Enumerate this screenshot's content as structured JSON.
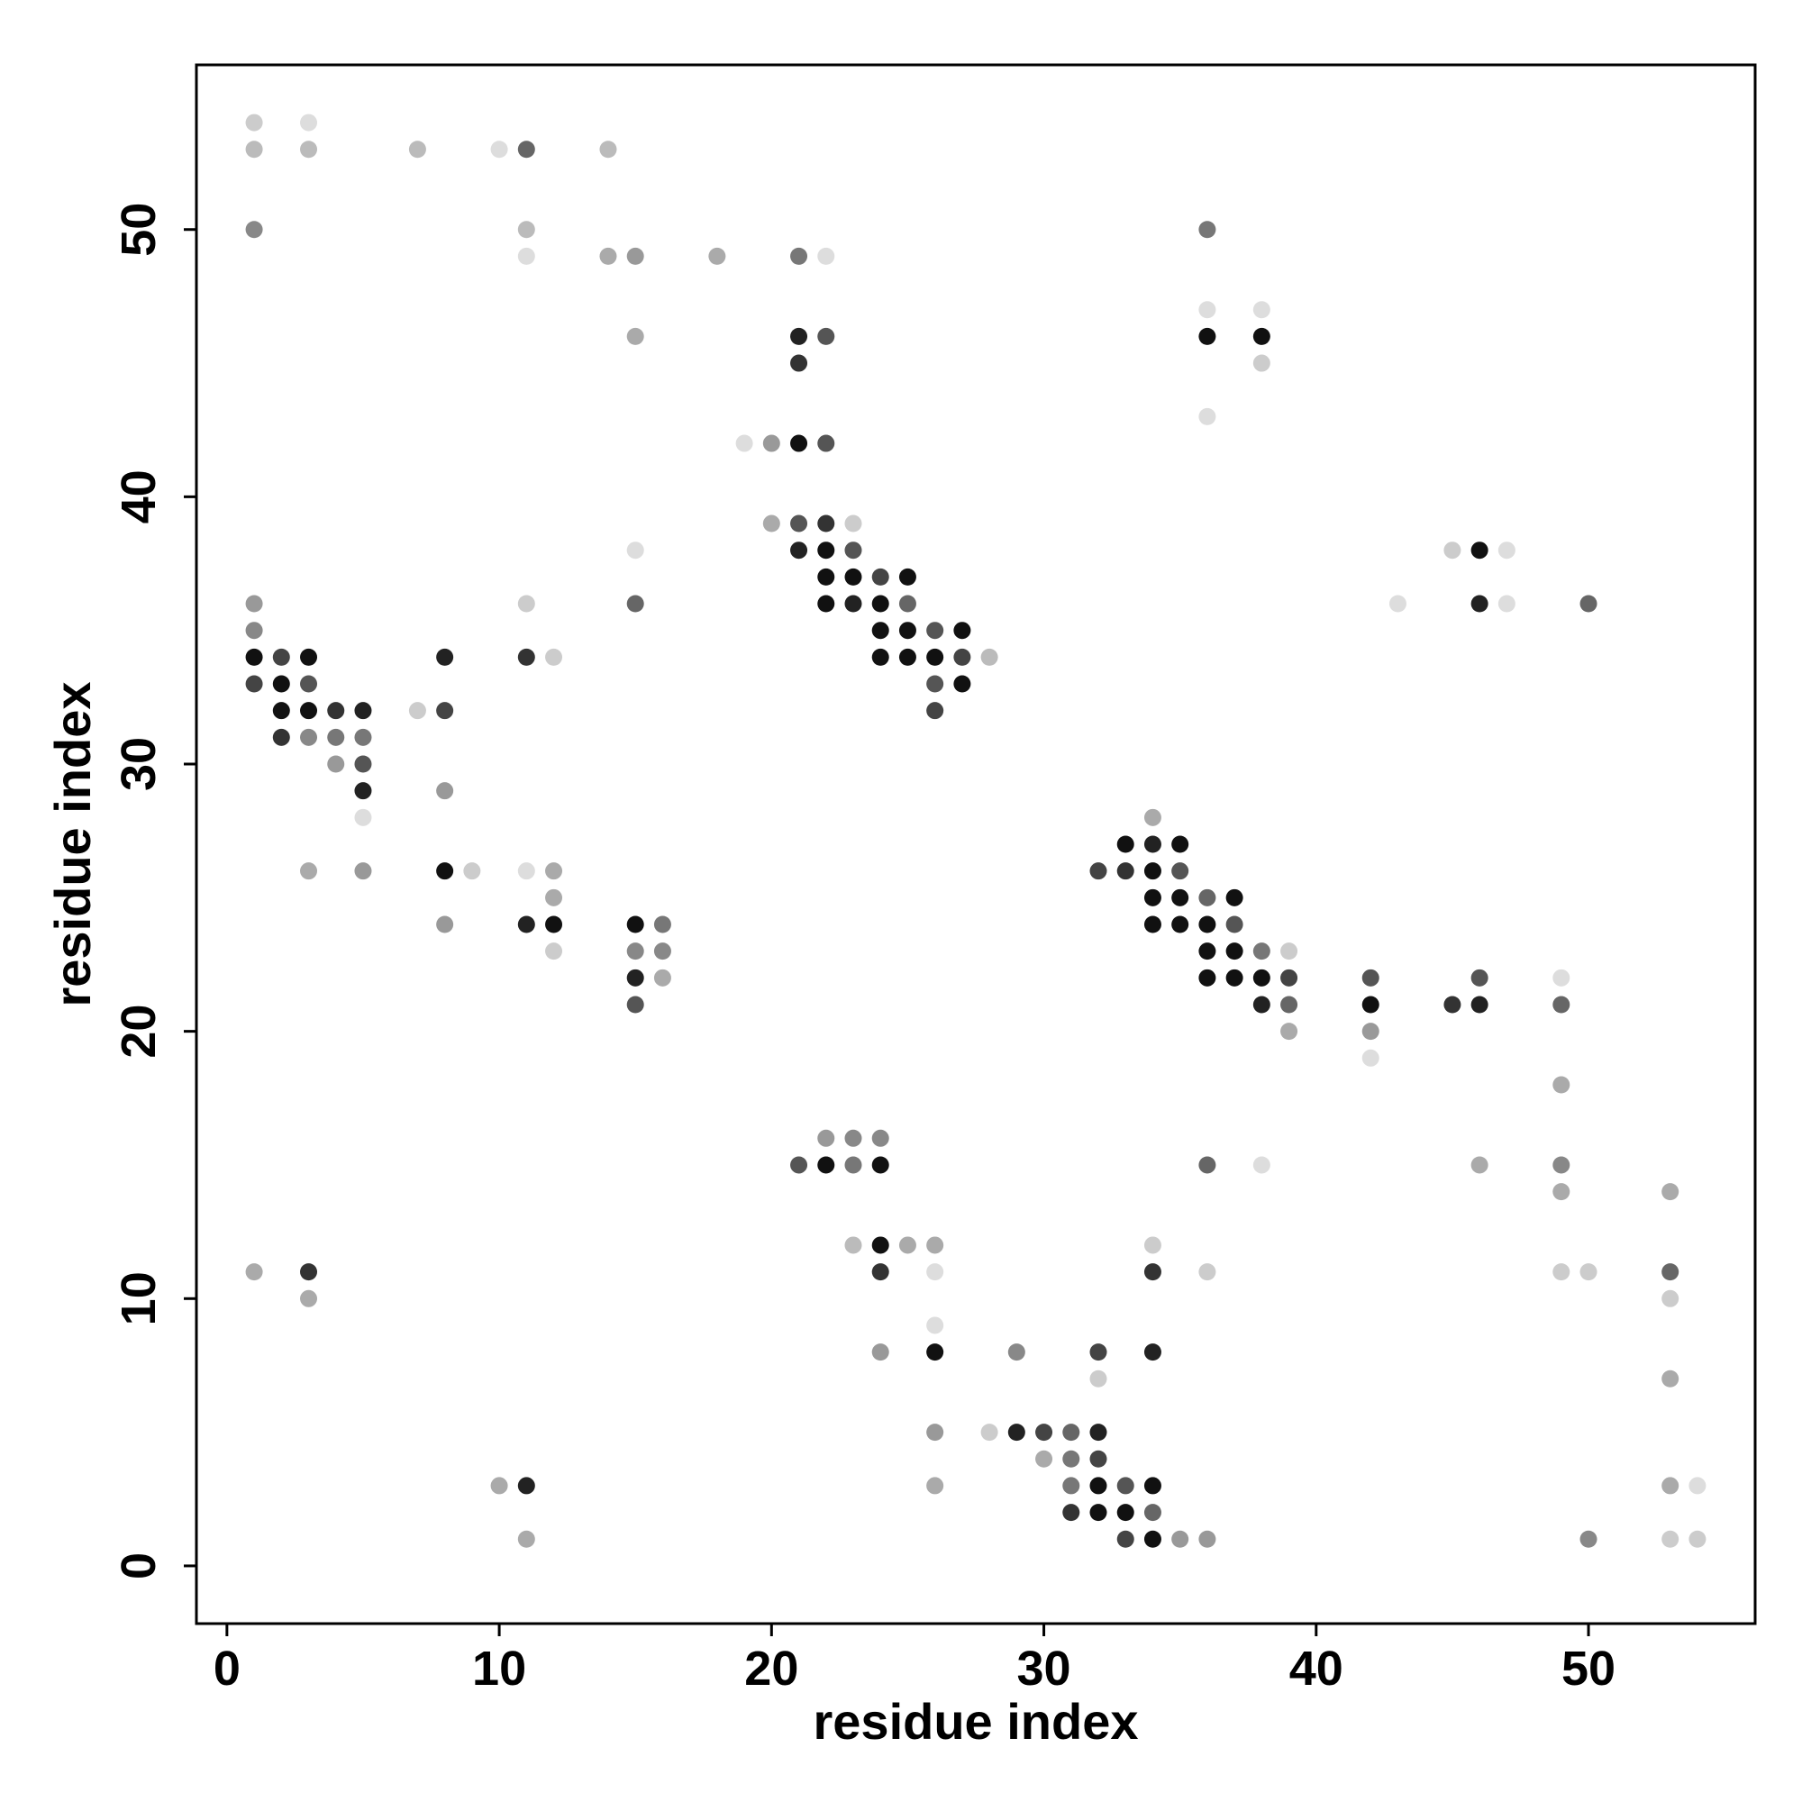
{
  "chart_data": {
    "type": "scatter",
    "xlabel": "residue index",
    "ylabel": "residue index",
    "xlim": [
      -1.12,
      56.12
    ],
    "ylim": [
      -2.16,
      56.16
    ],
    "xticks": [
      0,
      10,
      20,
      30,
      40,
      50
    ],
    "yticks": [
      0,
      10,
      20,
      30,
      40,
      50
    ],
    "grid": false,
    "x": [
      1,
      3,
      1,
      3,
      7,
      10,
      11,
      14,
      1,
      11,
      36,
      11,
      14,
      15,
      18,
      21,
      22,
      36,
      38,
      15,
      21,
      22,
      36,
      38,
      21,
      38,
      36,
      19,
      20,
      21,
      22,
      20,
      21,
      22,
      23,
      15,
      21,
      22,
      23,
      45,
      46,
      47,
      22,
      23,
      24,
      25,
      1,
      11,
      15,
      22,
      23,
      24,
      25,
      43,
      46,
      47,
      50,
      1,
      24,
      25,
      26,
      27,
      1,
      2,
      3,
      8,
      11,
      12,
      24,
      25,
      26,
      27,
      28,
      1,
      2,
      3,
      26,
      27,
      2,
      3,
      4,
      5,
      7,
      8,
      26,
      2,
      3,
      4,
      5,
      4,
      5,
      5,
      8,
      5,
      34,
      33,
      34,
      35,
      3,
      5,
      8,
      9,
      11,
      12,
      32,
      33,
      34,
      35,
      12,
      34,
      35,
      36,
      37,
      8,
      11,
      12,
      15,
      16,
      34,
      35,
      36,
      37,
      12,
      15,
      16,
      36,
      37,
      38,
      39,
      15,
      16,
      36,
      37,
      38,
      39,
      42,
      46,
      49,
      15,
      38,
      39,
      42,
      45,
      46,
      49,
      39,
      42,
      42,
      49,
      22,
      23,
      24,
      21,
      22,
      23,
      24,
      36,
      38,
      46,
      49,
      49,
      53,
      23,
      24,
      25,
      26,
      34,
      1,
      3,
      24,
      26,
      34,
      36,
      49,
      50,
      53,
      3,
      53,
      26,
      24,
      26,
      29,
      32,
      34,
      32,
      53,
      26,
      28,
      29,
      30,
      31,
      32,
      30,
      31,
      32,
      10,
      11,
      26,
      31,
      32,
      33,
      34,
      53,
      54,
      31,
      32,
      33,
      34,
      11,
      33,
      34,
      35,
      36,
      50,
      53,
      54
    ],
    "y": [
      54,
      54,
      53,
      53,
      53,
      53,
      53,
      53,
      50,
      50,
      50,
      49,
      49,
      49,
      49,
      49,
      49,
      47,
      47,
      46,
      46,
      46,
      46,
      46,
      45,
      45,
      43,
      42,
      42,
      42,
      42,
      39,
      39,
      39,
      39,
      38,
      38,
      38,
      38,
      38,
      38,
      38,
      37,
      37,
      37,
      37,
      36,
      36,
      36,
      36,
      36,
      36,
      36,
      36,
      36,
      36,
      36,
      35,
      35,
      35,
      35,
      35,
      34,
      34,
      34,
      34,
      34,
      34,
      34,
      34,
      34,
      34,
      34,
      33,
      33,
      33,
      33,
      33,
      32,
      32,
      32,
      32,
      32,
      32,
      32,
      31,
      31,
      31,
      31,
      30,
      30,
      29,
      29,
      28,
      28,
      27,
      27,
      27,
      26,
      26,
      26,
      26,
      26,
      26,
      26,
      26,
      26,
      26,
      25,
      25,
      25,
      25,
      25,
      24,
      24,
      24,
      24,
      24,
      24,
      24,
      24,
      24,
      23,
      23,
      23,
      23,
      23,
      23,
      23,
      22,
      22,
      22,
      22,
      22,
      22,
      22,
      22,
      22,
      21,
      21,
      21,
      21,
      21,
      21,
      21,
      20,
      20,
      19,
      18,
      16,
      16,
      16,
      15,
      15,
      15,
      15,
      15,
      15,
      15,
      15,
      14,
      14,
      12,
      12,
      12,
      12,
      12,
      11,
      11,
      11,
      11,
      11,
      11,
      11,
      11,
      11,
      10,
      10,
      9,
      8,
      8,
      8,
      8,
      8,
      7,
      7,
      5,
      5,
      5,
      5,
      5,
      5,
      4,
      4,
      4,
      3,
      3,
      3,
      3,
      3,
      3,
      3,
      3,
      3,
      2,
      2,
      2,
      2,
      1,
      1,
      1,
      1,
      1,
      1,
      1,
      1
    ],
    "colors": [
      "#ccc",
      "#ddd",
      "#bbb",
      "#bbb",
      "#bbb",
      "#ddd",
      "#666",
      "#bbb",
      "#888",
      "#bbb",
      "#777",
      "#ddd",
      "#aaa",
      "#999",
      "#aaa",
      "#777",
      "#ddd",
      "#ddd",
      "#ddd",
      "#aaa",
      "#222",
      "#555",
      "#111",
      "#111",
      "#333",
      "#ccc",
      "#ddd",
      "#ddd",
      "#999",
      "#111",
      "#555",
      "#aaa",
      "#555",
      "#333",
      "#ccc",
      "#ddd",
      "#222",
      "#111",
      "#555",
      "#ccc",
      "#111",
      "#ddd",
      "#111",
      "#111",
      "#444",
      "#111",
      "#999",
      "#ccc",
      "#666",
      "#111",
      "#222",
      "#111",
      "#666",
      "#ddd",
      "#222",
      "#ddd",
      "#666",
      "#888",
      "#111",
      "#111",
      "#555",
      "#111",
      "#111",
      "#444",
      "#111",
      "#222",
      "#333",
      "#ccc",
      "#111",
      "#111",
      "#111",
      "#444",
      "#bbb",
      "#444",
      "#111",
      "#555",
      "#555",
      "#111",
      "#111",
      "#111",
      "#333",
      "#222",
      "#ccc",
      "#444",
      "#444",
      "#333",
      "#888",
      "#777",
      "#777",
      "#999",
      "#555",
      "#222",
      "#999",
      "#ddd",
      "#aaa",
      "#111",
      "#222",
      "#111",
      "#aaa",
      "#999",
      "#111",
      "#ccc",
      "#ddd",
      "#aaa",
      "#444",
      "#333",
      "#111",
      "#555",
      "#aaa",
      "#111",
      "#111",
      "#666",
      "#111",
      "#999",
      "#222",
      "#111",
      "#111",
      "#777",
      "#111",
      "#111",
      "#111",
      "#555",
      "#ccc",
      "#888",
      "#888",
      "#111",
      "#111",
      "#777",
      "#ccc",
      "#222",
      "#aaa",
      "#111",
      "#111",
      "#111",
      "#444",
      "#555",
      "#555",
      "#ddd",
      "#555",
      "#222",
      "#666",
      "#111",
      "#333",
      "#222",
      "#666",
      "#aaa",
      "#999",
      "#ddd",
      "#aaa",
      "#999",
      "#888",
      "#888",
      "#555",
      "#111",
      "#777",
      "#111",
      "#666",
      "#ddd",
      "#aaa",
      "#888",
      "#aaa",
      "#aaa",
      "#bbb",
      "#111",
      "#aaa",
      "#aaa",
      "#ccc",
      "#aaa",
      "#333",
      "#333",
      "#ddd",
      "#333",
      "#ccc",
      "#ccc",
      "#ccc",
      "#666",
      "#aaa",
      "#ccc",
      "#ddd",
      "#999",
      "#111",
      "#888",
      "#444",
      "#222",
      "#ccc",
      "#aaa",
      "#999",
      "#ccc",
      "#222",
      "#444",
      "#666",
      "#222",
      "#aaa",
      "#777",
      "#444",
      "#aaa",
      "#222",
      "#aaa",
      "#777",
      "#111",
      "#555",
      "#111",
      "#aaa",
      "#ddd",
      "#333",
      "#111",
      "#111",
      "#666",
      "#aaa",
      "#444",
      "#111",
      "#999",
      "#999",
      "#888",
      "#ccc",
      "#ccc"
    ]
  }
}
